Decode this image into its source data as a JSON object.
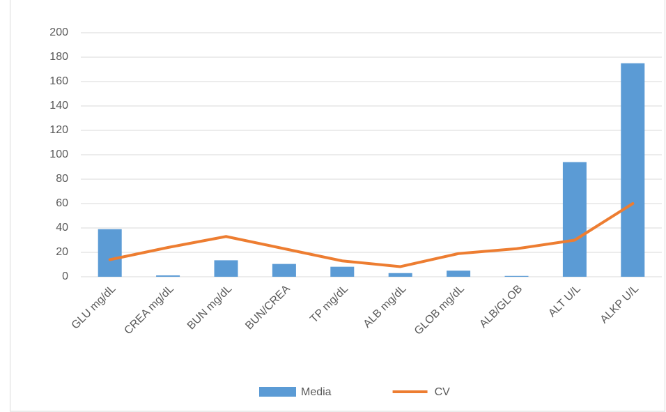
{
  "chart_data": {
    "type": "bar",
    "categories": [
      "GLU mg/dL",
      "CREA mg/dL",
      "BUN mg/dL",
      "BUN/CREA",
      "TP mg/dL",
      "ALB mg/dL",
      "GLOB mg/dL",
      "ALB/GLOB",
      "ALT  U/L",
      "ALKP  U/L"
    ],
    "series": [
      {
        "name": "Media",
        "type": "bar",
        "color": "#5b9bd5",
        "values": [
          39,
          1.1,
          13.5,
          10.5,
          8.2,
          3,
          5,
          0.7,
          94,
          175
        ]
      },
      {
        "name": "CV",
        "type": "line",
        "color": "#ed7d31",
        "values": [
          14,
          24,
          33,
          23,
          13,
          8.3,
          19,
          23,
          30,
          60
        ]
      }
    ],
    "ylim": [
      0,
      200
    ],
    "yticks": [
      0,
      20,
      40,
      60,
      80,
      100,
      120,
      140,
      160,
      180,
      200
    ],
    "grid": true,
    "legend": "bottom"
  }
}
